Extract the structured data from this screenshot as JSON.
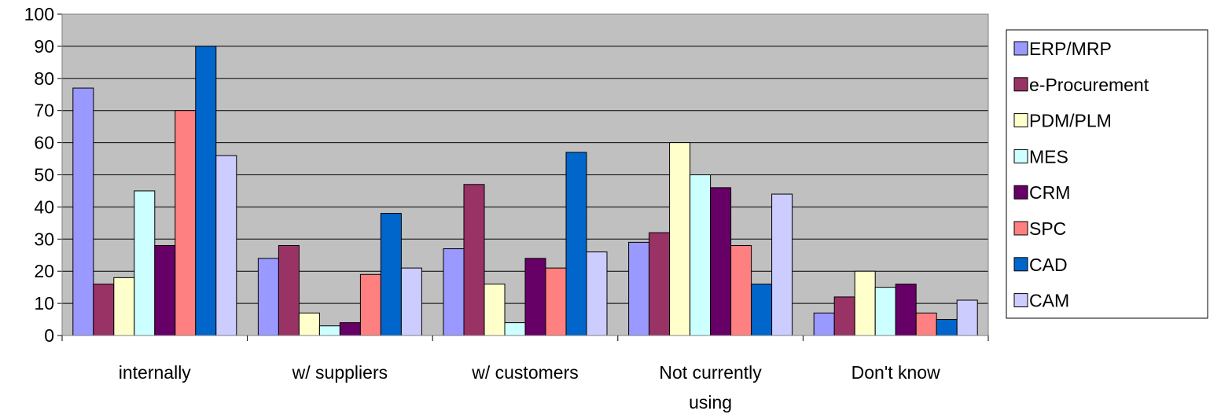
{
  "chart_data": {
    "type": "bar",
    "categories": [
      "internally",
      "w/ suppliers",
      "w/ customers",
      "Not currently using",
      "Don't know"
    ],
    "category_lines": [
      [
        "internally"
      ],
      [
        "w/ suppliers"
      ],
      [
        "w/ customers"
      ],
      [
        "Not currently",
        "using"
      ],
      [
        "Don't know"
      ]
    ],
    "series": [
      {
        "name": "ERP/MRP",
        "color": "#9999FF",
        "values": [
          77,
          24,
          27,
          29,
          7
        ]
      },
      {
        "name": "e-Procurement",
        "color": "#993366",
        "values": [
          16,
          28,
          47,
          32,
          12
        ]
      },
      {
        "name": "PDM/PLM",
        "color": "#FFFFCC",
        "values": [
          18,
          7,
          16,
          60,
          20
        ]
      },
      {
        "name": "MES",
        "color": "#CCFFFF",
        "values": [
          45,
          3,
          4,
          50,
          15
        ]
      },
      {
        "name": "CRM",
        "color": "#660066",
        "values": [
          28,
          4,
          24,
          46,
          16
        ]
      },
      {
        "name": "SPC",
        "color": "#FF8080",
        "values": [
          70,
          19,
          21,
          28,
          7
        ]
      },
      {
        "name": "CAD",
        "color": "#0066CC",
        "values": [
          90,
          38,
          57,
          16,
          5
        ]
      },
      {
        "name": "CAM",
        "color": "#CCCCFF",
        "values": [
          56,
          21,
          26,
          44,
          11
        ]
      }
    ],
    "ylim": [
      0,
      100
    ],
    "yticks": [
      0,
      10,
      20,
      30,
      40,
      50,
      60,
      70,
      80,
      90,
      100
    ],
    "title": "",
    "xlabel": "",
    "ylabel": "",
    "grid": true,
    "plot_background": "#C0C0C0",
    "legend_position": "right"
  }
}
